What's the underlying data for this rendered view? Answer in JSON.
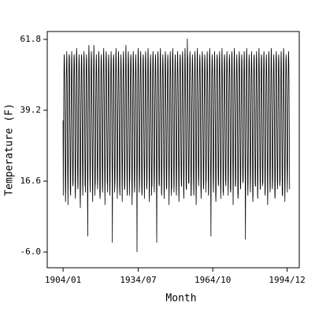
{
  "chart_data": {
    "type": "line",
    "x_label": "Month",
    "y_label": "Temperature (F)",
    "color": "#000000",
    "xlim": [
      -77,
      1150
    ],
    "xticks": [
      {
        "value": 0,
        "label": "1904/01"
      },
      {
        "value": 366,
        "label": "1934/07"
      },
      {
        "value": 729,
        "label": "1964/10"
      },
      {
        "value": 1091,
        "label": "1994/12"
      }
    ],
    "ylim": [
      -11.0,
      64.3
    ],
    "yticks": [
      {
        "value": -6,
        "label": "-6.0"
      },
      16.6,
      39.2,
      61.8
    ],
    "values": [
      36,
      12,
      28,
      40,
      48,
      56,
      57,
      54,
      47,
      37,
      26,
      15,
      10,
      14,
      27,
      39,
      49,
      55,
      58,
      55,
      48,
      38,
      25,
      16,
      9,
      18,
      30,
      41,
      50,
      56,
      57,
      56,
      48,
      36,
      27,
      14,
      13,
      12,
      28,
      38,
      47,
      55,
      58,
      55,
      47,
      37,
      26,
      17,
      15,
      16,
      29,
      40,
      49,
      56,
      57,
      55,
      48,
      39,
      28,
      13,
      11,
      17,
      27,
      39,
      50,
      57,
      59,
      56,
      49,
      38,
      26,
      18,
      14,
      15,
      28,
      40,
      48,
      55,
      57,
      54,
      47,
      36,
      25,
      12,
      8,
      14,
      27,
      38,
      47,
      55,
      57,
      56,
      48,
      37,
      27,
      16,
      12,
      17,
      30,
      41,
      49,
      56,
      58,
      55,
      47,
      38,
      26,
      15,
      16,
      13,
      28,
      39,
      48,
      55,
      57,
      55,
      48,
      37,
      25,
      14,
      -1,
      15,
      27,
      40,
      49,
      57,
      60,
      56,
      48,
      38,
      27,
      17,
      13,
      18,
      29,
      41,
      50,
      56,
      58,
      55,
      47,
      37,
      28,
      16,
      10,
      14,
      28,
      39,
      48,
      56,
      60,
      56,
      49,
      39,
      26,
      12,
      15,
      16,
      27,
      38,
      47,
      55,
      57,
      54,
      48,
      36,
      25,
      18,
      14,
      17,
      29,
      40,
      49,
      56,
      58,
      56,
      47,
      38,
      27,
      13,
      11,
      12,
      28,
      39,
      48,
      55,
      57,
      55,
      48,
      37,
      26,
      17,
      13,
      15,
      30,
      41,
      50,
      57,
      59,
      55,
      49,
      38,
      25,
      15,
      9,
      18,
      27,
      40,
      49,
      56,
      58,
      56,
      48,
      37,
      28,
      16,
      16,
      13,
      28,
      38,
      47,
      55,
      57,
      54,
      47,
      36,
      26,
      14,
      12,
      16,
      29,
      40,
      49,
      56,
      58,
      55,
      48,
      39,
      27,
      18,
      -3,
      14,
      27,
      39,
      48,
      55,
      57,
      56,
      49,
      37,
      25,
      13,
      15,
      17,
      30,
      41,
      50,
      57,
      59,
      55,
      47,
      38,
      26,
      17,
      11,
      15,
      28,
      40,
      48,
      56,
      58,
      56,
      48,
      37,
      27,
      15,
      13,
      12,
      27,
      38,
      47,
      55,
      57,
      54,
      48,
      36,
      26,
      16,
      10,
      18,
      29,
      40,
      49,
      56,
      58,
      55,
      47,
      38,
      25,
      14,
      14,
      16,
      28,
      39,
      48,
      57,
      60,
      56,
      48,
      37,
      27,
      18,
      12,
      13,
      30,
      41,
      50,
      56,
      58,
      55,
      49,
      39,
      26,
      12,
      16,
      17,
      27,
      40,
      49,
      55,
      57,
      56,
      48,
      37,
      28,
      15,
      9,
      14,
      28,
      38,
      47,
      56,
      58,
      55,
      47,
      36,
      25,
      17,
      13,
      15,
      29,
      40,
      48,
      55,
      57,
      54,
      48,
      38,
      26,
      16,
      -6,
      16,
      27,
      39,
      49,
      57,
      59,
      56,
      49,
      37,
      27,
      13,
      15,
      18,
      28,
      41,
      50,
      56,
      58,
      55,
      47,
      38,
      26,
      14,
      12,
      13,
      30,
      40,
      48,
      55,
      57,
      56,
      48,
      37,
      25,
      18,
      11,
      16,
      27,
      38,
      47,
      56,
      58,
      55,
      48,
      36,
      27,
      15,
      14,
      17,
      29,
      40,
      49,
      57,
      59,
      55,
      47,
      38,
      28,
      16,
      10,
      12,
      28,
      39,
      48,
      55,
      57,
      54,
      49,
      37,
      26,
      12,
      16,
      15,
      27,
      41,
      50,
      56,
      58,
      56,
      48,
      39,
      25,
      17,
      13,
      18,
      30,
      40,
      49,
      55,
      57,
      55,
      47,
      37,
      27,
      14,
      -3,
      14,
      28,
      38,
      47,
      56,
      58,
      56,
      48,
      36,
      26,
      16,
      15,
      16,
      29,
      40,
      48,
      57,
      59,
      55,
      49,
      38,
      25,
      13,
      12,
      17,
      27,
      39,
      49,
      55,
      57,
      54,
      48,
      37,
      28,
      18,
      11,
      13,
      28,
      41,
      50,
      56,
      58,
      56,
      47,
      38,
      26,
      15,
      14,
      15,
      30,
      40,
      48,
      55,
      57,
      55,
      48,
      36,
      27,
      16,
      9,
      18,
      27,
      38,
      47,
      56,
      58,
      55,
      49,
      37,
      25,
      12,
      16,
      14,
      29,
      40,
      49,
      57,
      59,
      56,
      48,
      39,
      26,
      17,
      13,
      16,
      28,
      39,
      48,
      55,
      57,
      55,
      47,
      37,
      28,
      14,
      12,
      17,
      27,
      41,
      50,
      56,
      58,
      54,
      48,
      38,
      27,
      16,
      10,
      13,
      30,
      40,
      49,
      55,
      57,
      56,
      49,
      36,
      25,
      18,
      15,
      15,
      28,
      38,
      47,
      56,
      58,
      55,
      48,
      37,
      26,
      13,
      11,
      18,
      29,
      40,
      48,
      57,
      59,
      55,
      47,
      38,
      27,
      15,
      14,
      14,
      27,
      39,
      49,
      62,
      57,
      56,
      48,
      37,
      28,
      16,
      16,
      16,
      28,
      41,
      50,
      56,
      58,
      55,
      49,
      36,
      25,
      12,
      12,
      17,
      30,
      40,
      48,
      55,
      57,
      54,
      48,
      38,
      26,
      17,
      13,
      12,
      27,
      38,
      47,
      56,
      58,
      56,
      47,
      37,
      27,
      14,
      9,
      15,
      29,
      40,
      49,
      57,
      59,
      55,
      48,
      39,
      25,
      18,
      15,
      18,
      28,
      39,
      48,
      55,
      57,
      55,
      49,
      37,
      26,
      15,
      11,
      14,
      27,
      41,
      50,
      56,
      58,
      56,
      48,
      38,
      28,
      16,
      14,
      16,
      30,
      40,
      49,
      55,
      57,
      55,
      47,
      36,
      27,
      13,
      16,
      17,
      28,
      38,
      47,
      56,
      58,
      54,
      48,
      37,
      25,
      17,
      12,
      13,
      29,
      40,
      48,
      57,
      59,
      56,
      49,
      38,
      26,
      14,
      -1,
      15,
      27,
      39,
      49,
      55,
      57,
      55,
      48,
      37,
      27,
      16,
      13,
      18,
      28,
      41,
      50,
      56,
      58,
      55,
      47,
      36,
      28,
      12,
      10,
      14,
      30,
      40,
      48,
      55,
      57,
      56,
      48,
      39,
      26,
      18,
      15,
      16,
      27,
      38,
      47,
      56,
      58,
      55,
      49,
      37,
      25,
      15,
      11,
      17,
      29,
      40,
      49,
      57,
      59,
      54,
      48,
      38,
      27,
      13,
      14,
      12,
      28,
      39,
      48,
      55,
      57,
      56,
      47,
      37,
      26,
      17,
      16,
      15,
      27,
      41,
      50,
      56,
      58,
      55,
      48,
      36,
      28,
      16,
      12,
      18,
      30,
      40,
      49,
      55,
      57,
      55,
      49,
      38,
      25,
      14,
      13,
      14,
      28,
      38,
      47,
      56,
      58,
      56,
      48,
      37,
      27,
      18,
      9,
      16,
      29,
      40,
      48,
      57,
      59,
      55,
      47,
      39,
      26,
      15,
      15,
      17,
      27,
      39,
      49,
      55,
      57,
      54,
      48,
      37,
      28,
      12,
      11,
      13,
      28,
      41,
      50,
      56,
      58,
      56,
      49,
      38,
      25,
      16,
      14,
      15,
      30,
      40,
      48,
      55,
      57,
      55,
      48,
      36,
      27,
      17,
      16,
      18,
      27,
      38,
      47,
      56,
      58,
      55,
      47,
      37,
      26,
      13,
      -2,
      14,
      29,
      40,
      49,
      57,
      59,
      56,
      48,
      38,
      25,
      15,
      12,
      16,
      28,
      39,
      48,
      55,
      57,
      55,
      49,
      37,
      27,
      18,
      13,
      17,
      27,
      41,
      50,
      56,
      58,
      54,
      48,
      36,
      28,
      14,
      10,
      12,
      30,
      40,
      49,
      55,
      57,
      56,
      47,
      39,
      26,
      16,
      15,
      15,
      28,
      38,
      47,
      56,
      58,
      55,
      48,
      37,
      25,
      12,
      11,
      18,
      29,
      40,
      48,
      57,
      59,
      55,
      49,
      38,
      27,
      17,
      14,
      14,
      27,
      39,
      49,
      55,
      57,
      56,
      48,
      37,
      26,
      15,
      16,
      16,
      28,
      41,
      50,
      56,
      58,
      55,
      47,
      36,
      28,
      13,
      12,
      17,
      30,
      40,
      48,
      55,
      57,
      54,
      48,
      38,
      25,
      18,
      9,
      13,
      27,
      38,
      47,
      56,
      58,
      56,
      49,
      37,
      27,
      16,
      13,
      15,
      29,
      40,
      49,
      57,
      59,
      55,
      48,
      36,
      26,
      14,
      15,
      18,
      28,
      39,
      48,
      55,
      57,
      55,
      47,
      38,
      28,
      12,
      11,
      14,
      27,
      41,
      50,
      56,
      58,
      56,
      48,
      37,
      25,
      17,
      14,
      16,
      30,
      40,
      49,
      55,
      57,
      55,
      49,
      39,
      27,
      15,
      16,
      17,
      28,
      38,
      47,
      56,
      58,
      54,
      48,
      37,
      26,
      13,
      12,
      12,
      29,
      40,
      48,
      57,
      59,
      56,
      47,
      38,
      28,
      16,
      10,
      15,
      27,
      39,
      49,
      55,
      57,
      55,
      48,
      36,
      25,
      18,
      13,
      18,
      28,
      41,
      50,
      56,
      58,
      55,
      49,
      37,
      27,
      14
    ]
  }
}
